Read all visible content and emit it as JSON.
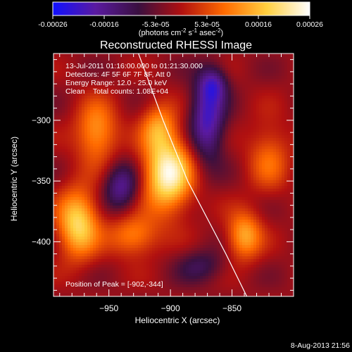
{
  "colorbar": {
    "ticks": [
      "-0.00026",
      "-0.00016",
      "-5.3e-05",
      "5.3e-05",
      "0.00016",
      "0.00026"
    ],
    "unit_label": "(photons cm",
    "unit_exp1": "-2",
    "unit_mid": " s",
    "unit_exp2": "-1",
    "unit_end": " asec",
    "unit_exp3": "-2",
    "unit_close": ")",
    "stops": [
      "#1010ff",
      "#5a1aa0",
      "#3a1040",
      "#b01010",
      "#ff6a00",
      "#ffd040",
      "#ffffff"
    ]
  },
  "chart_data": {
    "type": "heatmap",
    "title": "Reconstructed RHESSI Image",
    "xlabel": "Heliocentric X (arcsec)",
    "ylabel": "Heliocentric Y (arcsec)",
    "xlim": [
      -995,
      -800
    ],
    "ylim": [
      -445,
      -245
    ],
    "x_ticks": [
      -950,
      -900,
      -850
    ],
    "y_ticks": [
      -300,
      -350,
      -400
    ],
    "x_tick_labels": [
      "−950",
      "−900",
      "−850"
    ],
    "y_tick_labels": [
      "−300",
      "−350",
      "−400"
    ],
    "color_range": [
      -0.00026,
      0.00026
    ],
    "peak": {
      "x": -902,
      "y": -344
    },
    "sources": [
      {
        "x": -902,
        "y": -344,
        "value": 0.00026,
        "sx": 14,
        "sy": 22
      },
      {
        "x": -910,
        "y": -305,
        "value": 0.00012,
        "sx": 10,
        "sy": 14
      },
      {
        "x": -975,
        "y": -385,
        "value": 0.00021,
        "sx": 12,
        "sy": 20
      },
      {
        "x": -960,
        "y": -310,
        "value": 0.00015,
        "sx": 12,
        "sy": 18
      },
      {
        "x": -930,
        "y": -395,
        "value": 0.00013,
        "sx": 14,
        "sy": 12
      },
      {
        "x": -840,
        "y": -395,
        "value": 0.00016,
        "sx": 10,
        "sy": 14
      },
      {
        "x": -820,
        "y": -330,
        "value": 0.0001,
        "sx": 12,
        "sy": 20
      },
      {
        "x": -870,
        "y": -300,
        "value": -0.00018,
        "sx": 10,
        "sy": 24
      },
      {
        "x": -865,
        "y": -270,
        "value": -0.00012,
        "sx": 8,
        "sy": 10
      },
      {
        "x": -940,
        "y": -355,
        "value": -0.00014,
        "sx": 10,
        "sy": 14
      },
      {
        "x": -875,
        "y": -420,
        "value": -8e-05,
        "sx": 14,
        "sy": 10
      }
    ],
    "limb": [
      [
        -926,
        -245
      ],
      [
        -906,
        -300
      ],
      [
        -886,
        -350
      ],
      [
        -855,
        -410
      ],
      [
        -838,
        -445
      ]
    ],
    "annotations": {
      "time": "13-Jul-2011 01:16:00.000 to 01:21:30.000",
      "detectors": "Detectors: 4F 5F 6F 7F 8F, Att 0",
      "energy": "Energy Range: 12.0 - 25.0 keV",
      "clean": "Clean    Total counts: 1.08E+04",
      "peak": "Position of Peak = [-902,-344]"
    },
    "footer_date": "8-Aug-2013 21:56"
  }
}
